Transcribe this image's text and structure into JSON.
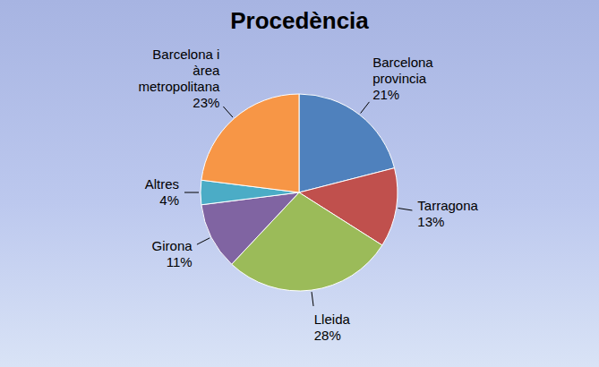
{
  "chart_data": {
    "type": "pie",
    "title": "Procedència",
    "categories": [
      "Barcelona provincia",
      "Tarragona",
      "Lleida",
      "Girona",
      "Altres",
      "Barcelona i àrea metropolitana"
    ],
    "values": [
      21,
      13,
      28,
      11,
      4,
      23
    ],
    "value_labels": [
      "21%",
      "13%",
      "28%",
      "11%",
      "4%",
      "23%"
    ],
    "colors": [
      "#4f81bd",
      "#c0504d",
      "#9bbb59",
      "#8064a2",
      "#4bacc6",
      "#f79646"
    ],
    "data_labels": true
  }
}
